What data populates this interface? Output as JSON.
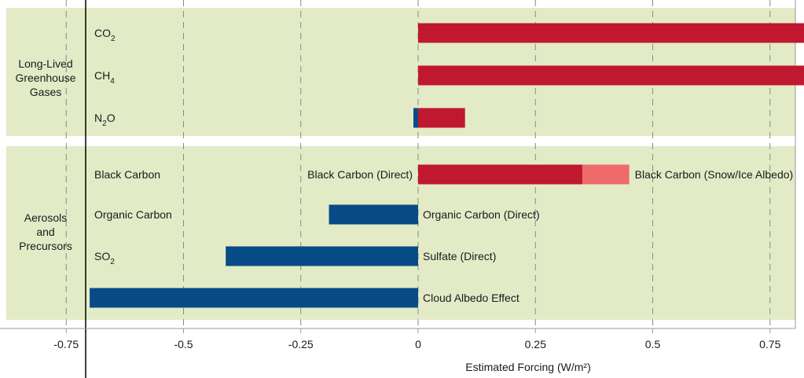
{
  "chart_data": {
    "type": "bar",
    "orientation": "horizontal",
    "xlabel": "Estimated Forcing (W/m²)",
    "xlim": [
      -1,
      1.6
    ],
    "xticks": [
      "-1",
      "-0.75",
      "-0.5",
      "-0.25",
      "0",
      "0.25",
      "0.5",
      "0.75",
      "1",
      "1.25",
      "1.5"
    ],
    "grid": "vertical dashed",
    "colors": {
      "warming": "#c0182e",
      "warming_light": "#ef6b6b",
      "cooling": "#074b87",
      "panel": "#e2ebc6"
    },
    "groups": [
      {
        "label_lines": [
          "Long-Lived",
          "Greenhouse",
          "Gases"
        ],
        "categories": [
          {
            "label": "CO",
            "sub": "2",
            "bars": [
              {
                "start": 0,
                "end": 1.58,
                "color": "warming"
              }
            ]
          },
          {
            "label": "CH",
            "sub": "4",
            "bars": [
              {
                "start": 0,
                "end": 0.87,
                "color": "warming"
              }
            ]
          },
          {
            "label": "N",
            "sub": "2",
            "suffix": "O",
            "bars": [
              {
                "start": -0.01,
                "end": 0,
                "color": "cooling"
              },
              {
                "start": 0,
                "end": 0.1,
                "color": "warming"
              }
            ]
          }
        ]
      },
      {
        "label_lines": [
          "Aerosols",
          "and",
          "Precursors"
        ],
        "categories": [
          {
            "label": "Black Carbon",
            "bars": [
              {
                "start": 0,
                "end": 0.35,
                "color": "warming",
                "name": "Black Carbon (Direct)",
                "label_side": "left"
              },
              {
                "start": 0.35,
                "end": 0.45,
                "color": "warming_light",
                "name": "Black Carbon (Snow/Ice Albedo)",
                "label_side": "right"
              }
            ]
          },
          {
            "label": "Organic Carbon",
            "bars": [
              {
                "start": -0.19,
                "end": 0,
                "color": "cooling",
                "name": "Organic Carbon (Direct)",
                "label_side": "right"
              }
            ]
          },
          {
            "label": "SO",
            "sub": "2",
            "bars": [
              {
                "start": -0.41,
                "end": 0,
                "color": "cooling",
                "name": "Sulfate (Direct)",
                "label_side": "right"
              }
            ]
          },
          {
            "label": "Aerosols",
            "bars": [
              {
                "start": -0.7,
                "end": 0,
                "color": "cooling",
                "name": "Cloud Albedo Effect",
                "label_side": "right"
              }
            ]
          }
        ]
      }
    ]
  }
}
